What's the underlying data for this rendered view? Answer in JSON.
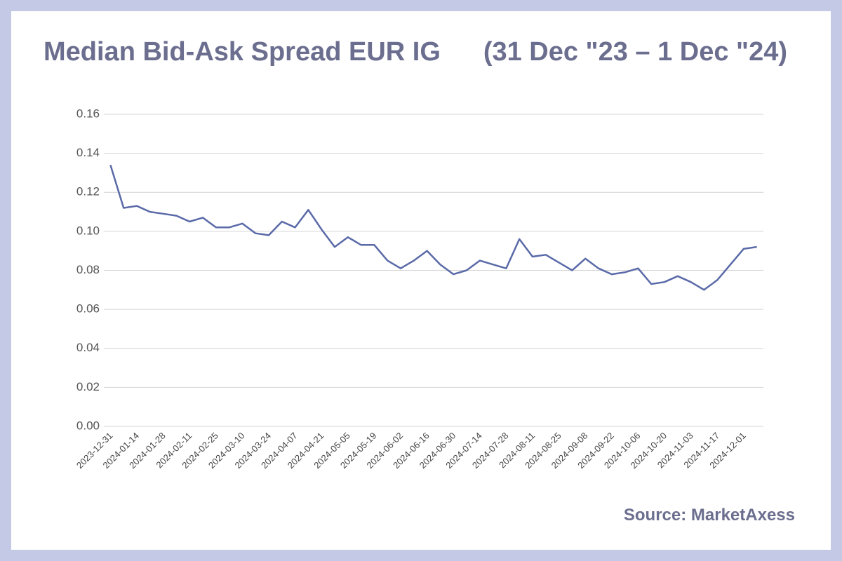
{
  "chart_data": {
    "type": "line",
    "title": "Median Bid-Ask Spread EUR IG",
    "subtitle": "(31 Dec \"23 – 1 Dec \"24)",
    "source": "Source: MarketAxess",
    "categories": [
      "2023-12-31",
      null,
      "2024-01-14",
      null,
      "2024-01-28",
      null,
      "2024-02-11",
      null,
      "2024-02-25",
      null,
      "2024-03-10",
      null,
      "2024-03-24",
      null,
      "2024-04-07",
      null,
      "2024-04-21",
      null,
      "2024-05-05",
      null,
      "2024-05-19",
      null,
      "2024-06-02",
      null,
      "2024-06-16",
      null,
      "2024-06-30",
      null,
      "2024-07-14",
      null,
      "2024-07-28",
      null,
      "2024-08-11",
      null,
      "2024-08-25",
      null,
      "2024-09-08",
      null,
      "2024-09-22",
      null,
      "2024-10-06",
      null,
      "2024-10-20",
      null,
      "2024-11-03",
      null,
      "2024-11-17",
      null,
      "2024-12-01",
      null
    ],
    "series": [
      {
        "name": "Median Bid-Ask Spread",
        "color": "#5a6aa8",
        "values": [
          0.134,
          0.112,
          0.113,
          0.11,
          0.109,
          0.108,
          0.105,
          0.107,
          0.102,
          0.102,
          0.104,
          0.099,
          0.098,
          0.105,
          0.102,
          0.111,
          0.101,
          0.092,
          0.097,
          0.093,
          0.093,
          0.085,
          0.081,
          0.085,
          0.09,
          0.083,
          0.078,
          0.08,
          0.085,
          0.083,
          0.081,
          0.096,
          0.087,
          0.088,
          0.084,
          0.08,
          0.086,
          0.081,
          0.078,
          0.079,
          0.081,
          0.073,
          0.074,
          0.077,
          0.074,
          0.07,
          0.075,
          0.083,
          0.091,
          0.092
        ]
      }
    ],
    "ylim": [
      0,
      0.16
    ],
    "yticks": [
      {
        "value": 0,
        "label": "0.00"
      },
      {
        "value": 0.02,
        "label": "0.02"
      },
      {
        "value": 0.04,
        "label": "0.04"
      },
      {
        "value": 0.06,
        "label": "0.06"
      },
      {
        "value": 0.08,
        "label": "0.08"
      },
      {
        "value": 0.1,
        "label": "0.10"
      },
      {
        "value": 0.12,
        "label": "0.12"
      },
      {
        "value": 0.14,
        "label": "0.14"
      },
      {
        "value": 0.16,
        "label": "0.16"
      }
    ],
    "grid": true
  }
}
